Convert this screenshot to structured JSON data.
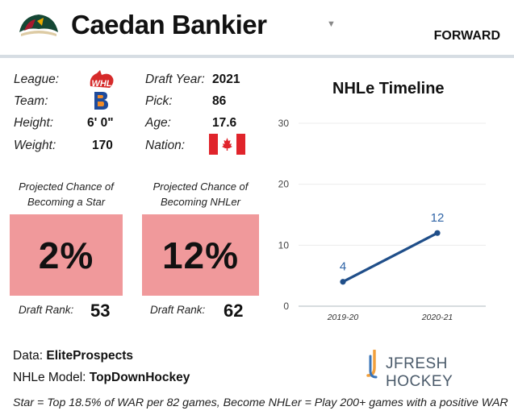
{
  "header": {
    "player_name": "Caedan Bankier",
    "position": "FORWARD",
    "dropdown_icon": "chevron-down-icon"
  },
  "bio": {
    "league_label": "League:",
    "team_label": "Team:",
    "height_label": "Height:",
    "height_value": "6' 0\"",
    "weight_label": "Weight:",
    "weight_value": "170",
    "draft_year_label": "Draft Year:",
    "draft_year_value": "2021",
    "pick_label": "Pick:",
    "pick_value": "86",
    "age_label": "Age:",
    "age_value": "17.6",
    "nation_label": "Nation:",
    "league_logo": "whl-logo",
    "team_logo": "kamloops-blazers-logo",
    "nation_flag": "canada-flag"
  },
  "star_panel": {
    "title_line1": "Projected Chance of",
    "title_line2": "Becoming a Star",
    "value": "2%",
    "rank_label": "Draft Rank:",
    "rank_value": "53",
    "color": "#f0999b"
  },
  "nhler_panel": {
    "title_line1": "Projected Chance of",
    "title_line2": "Becoming NHLer",
    "value": "12%",
    "rank_label": "Draft Rank:",
    "rank_value": "62",
    "color": "#f0999b"
  },
  "chart_data": {
    "type": "line",
    "title": "NHLe Timeline",
    "categories": [
      "2019-20",
      "2020-21"
    ],
    "series": [
      {
        "values": [
          4,
          12
        ],
        "color": "#1f4e89"
      }
    ],
    "data_labels": [
      "4",
      "12"
    ],
    "yticks": [
      "0",
      "10",
      "20",
      "30"
    ],
    "ylim": [
      0,
      30
    ],
    "grid": true,
    "label_color": "#2f64a6"
  },
  "footer": {
    "data_label": "Data: ",
    "data_value": "EliteProspects",
    "model_label": "NHLe Model: ",
    "model_value": "TopDownHockey",
    "brand": "JFRESH HOCKEY",
    "footnote": "Star = Top 18.5% of WAR per 82 games, Become NHLer = Play 200+ games with a positive WAR"
  }
}
